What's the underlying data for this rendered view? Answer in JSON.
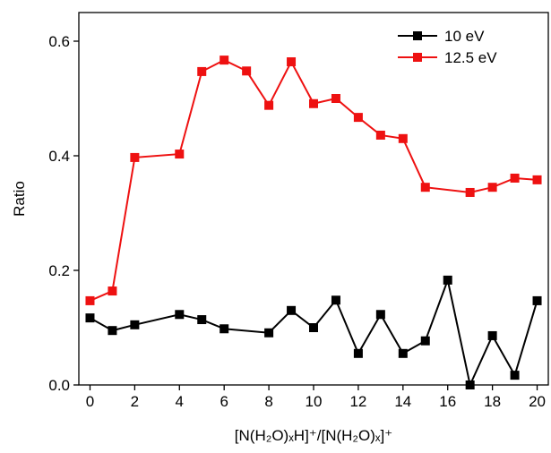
{
  "chart_data": {
    "type": "line",
    "x_label": "[N(H₂O)ₓH]⁺/[N(H₂O)ₓ]⁺",
    "y_label": "Ratio",
    "xlim": [
      -0.5,
      20.5
    ],
    "xticks": [
      0,
      2,
      4,
      6,
      8,
      10,
      12,
      14,
      16,
      18,
      20
    ],
    "ylim": [
      0,
      0.65
    ],
    "yticks": [
      {
        "value": 0,
        "label": "0.0"
      },
      {
        "value": 0.2,
        "label": "0.2"
      },
      {
        "value": 0.4,
        "label": "0.4"
      },
      {
        "value": 0.6,
        "label": "0.6"
      }
    ],
    "legend": "upper right",
    "series": [
      {
        "name": "10 eV",
        "color": "#000000",
        "x": [
          0,
          1,
          2,
          4,
          5,
          6,
          8,
          9,
          10,
          11,
          12,
          13,
          14,
          15,
          16,
          17,
          18,
          19,
          20
        ],
        "values": [
          0.117,
          0.095,
          0.105,
          0.123,
          0.114,
          0.098,
          0.091,
          0.13,
          0.1,
          0.148,
          0.055,
          0.123,
          0.055,
          0.077,
          0.183,
          0.0,
          0.086,
          0.017,
          0.147
        ]
      },
      {
        "name": "12.5 eV",
        "color": "#ee1111",
        "x": [
          0,
          1,
          2,
          4,
          5,
          6,
          7,
          8,
          9,
          10,
          11,
          12,
          13,
          14,
          15,
          17,
          18,
          19,
          20
        ],
        "values": [
          0.147,
          0.164,
          0.397,
          0.403,
          0.547,
          0.567,
          0.548,
          0.488,
          0.564,
          0.491,
          0.5,
          0.467,
          0.436,
          0.43,
          0.345,
          0.336,
          0.345,
          0.361,
          0.358
        ]
      }
    ]
  }
}
